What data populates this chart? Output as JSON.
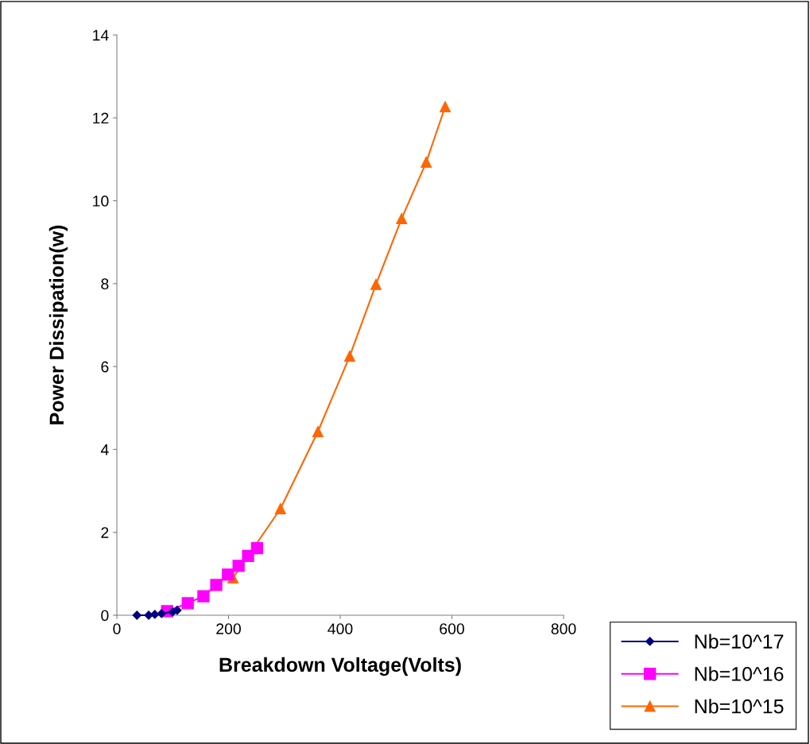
{
  "chart_data": {
    "type": "line",
    "xlabel": "Breakdown Voltage(Volts)",
    "ylabel": "Power Dissipation(w)",
    "xlim": [
      0,
      800
    ],
    "xticks": [
      0,
      200,
      400,
      600,
      800
    ],
    "ylim": [
      0,
      14
    ],
    "yticks": [
      0,
      2,
      4,
      6,
      8,
      10,
      12,
      14
    ],
    "grid": false,
    "legend": "bottom right",
    "line_style": "solid",
    "series": [
      {
        "name": "Nb=10^17",
        "color": "#000080",
        "marker": "diamond",
        "x": [
          36,
          57,
          68,
          80,
          100,
          108
        ],
        "values": [
          0.0,
          0.0,
          0.02,
          0.04,
          0.08,
          0.12
        ]
      },
      {
        "name": "Nb=10^16",
        "color": "#ff00ff",
        "marker": "square",
        "x": [
          90,
          127,
          155,
          178,
          199,
          218,
          235,
          251
        ],
        "values": [
          0.1,
          0.29,
          0.46,
          0.73,
          0.98,
          1.19,
          1.43,
          1.62
        ]
      },
      {
        "name": "Nb=10^15",
        "color": "#ff6600",
        "marker": "triangle",
        "x": [
          208,
          293,
          360,
          417,
          464,
          510,
          554,
          588
        ],
        "values": [
          0.9,
          2.57,
          4.43,
          6.25,
          7.98,
          9.57,
          10.93,
          12.27
        ]
      }
    ]
  }
}
